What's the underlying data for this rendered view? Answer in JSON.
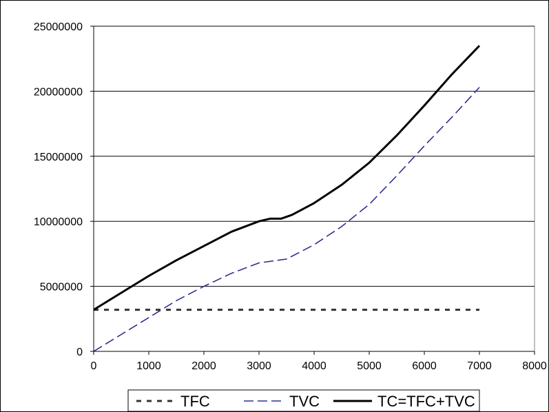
{
  "chart_data": {
    "type": "line",
    "title": "",
    "xlabel": "",
    "ylabel": "",
    "xlim": [
      0,
      8000
    ],
    "ylim": [
      0,
      25000000
    ],
    "x_ticks": [
      "0",
      "1000",
      "2000",
      "3000",
      "4000",
      "5000",
      "6000",
      "7000",
      "8000"
    ],
    "y_ticks": [
      "0",
      "5000000",
      "10000000",
      "15000000",
      "20000000",
      "25000000"
    ],
    "grid": "horizontal",
    "legend_position": "bottom",
    "series": [
      {
        "name": "TFC",
        "style": "dotted",
        "color": "#333333",
        "x": [
          0,
          1000,
          2000,
          3000,
          4000,
          5000,
          6000,
          7000
        ],
        "values": [
          3200000,
          3200000,
          3200000,
          3200000,
          3200000,
          3200000,
          3200000,
          3200000
        ]
      },
      {
        "name": "TVC",
        "style": "dashed",
        "color": "#2e2e8f",
        "x": [
          0,
          500,
          1000,
          1500,
          2000,
          2500,
          3000,
          3500,
          4000,
          4500,
          5000,
          5500,
          6000,
          6500,
          7000
        ],
        "values": [
          0,
          1300000,
          2600000,
          3900000,
          5000000,
          6000000,
          6800000,
          7100000,
          8200000,
          9600000,
          11300000,
          13500000,
          15800000,
          18000000,
          20300000
        ]
      },
      {
        "name": "TC=TFC+TVC",
        "style": "solid",
        "color": "#000000",
        "x": [
          0,
          500,
          1000,
          1500,
          2000,
          2500,
          3000,
          3200,
          3400,
          3600,
          4000,
          4500,
          5000,
          5500,
          6000,
          6500,
          7000
        ],
        "values": [
          3200000,
          4500000,
          5800000,
          7000000,
          8100000,
          9200000,
          10000000,
          10200000,
          10200000,
          10500000,
          11400000,
          12800000,
          14500000,
          16600000,
          18900000,
          21300000,
          23500000
        ]
      }
    ]
  }
}
